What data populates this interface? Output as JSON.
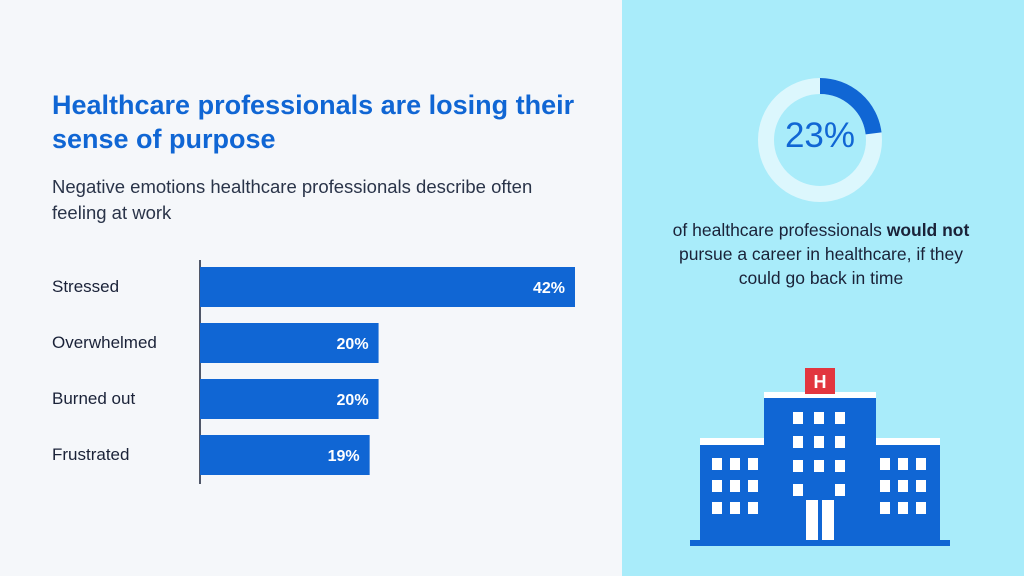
{
  "heading": {
    "title": "Healthcare professionals are losing their sense of purpose",
    "subtitle": "Negative emotions healthcare professionals describe often feeling at work"
  },
  "chart_data": {
    "type": "bar",
    "orientation": "horizontal",
    "categories": [
      "Stressed",
      "Overwhelmed",
      "Burned out",
      "Frustrated"
    ],
    "values": [
      42,
      20,
      20,
      19
    ],
    "value_labels": [
      "42%",
      "20%",
      "20%",
      "19%"
    ],
    "unit": "%",
    "bar_color": "#1066d4",
    "title": "Healthcare professionals are losing their sense of purpose",
    "subtitle": "Negative emotions healthcare professionals describe often feeling at work"
  },
  "stat": {
    "value": "23%",
    "fraction": 0.23,
    "desc_before": "of healthcare professionals ",
    "desc_bold": "would not",
    "desc_after": " pursue a career in healthcare, if they could go back in time"
  },
  "colors": {
    "primary": "#1066d4",
    "left_background": "#f5f7fa",
    "right_background": "#a9ecfa",
    "ring_track": "#dcf7fd",
    "hospital_sign": "#e2363f"
  },
  "icons": [
    "hospital-icon"
  ],
  "hospital_sign_letter": "H"
}
